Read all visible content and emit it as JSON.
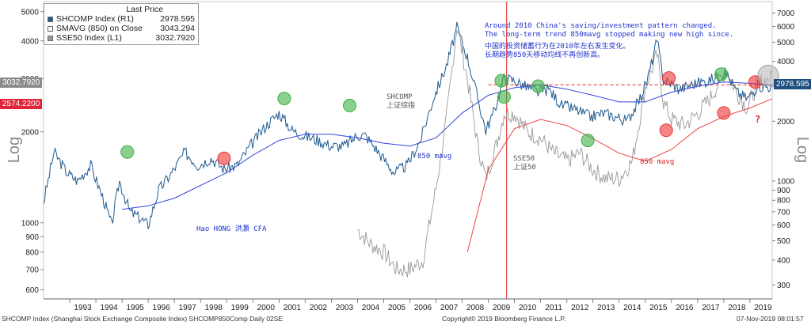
{
  "legend": {
    "header": "Last Price",
    "items": [
      {
        "label": "SHCOMP Index (R1)",
        "value": "2978.595",
        "color": "#1f5a8e"
      },
      {
        "label": "SMAVG (850) on Close",
        "value": "3043.294",
        "color": "#ffffff"
      },
      {
        "label": "SSE50 Index (L1)",
        "value": "3032.7920",
        "color": "#9a9a9a"
      }
    ]
  },
  "annotations": {
    "en": [
      "Around 2010 China's saving/investment pattern changed.",
      "The long-term trend 850mavg stopped making new high since."
    ],
    "cn": [
      "中国的投资储蓄行为在2010年左右发生变化。",
      "长期趋势850天移动均线不再创新高。"
    ],
    "author": "Hao HONG 洪灝 CFA",
    "shcomp_label": [
      "SHCOMP",
      "上证综指"
    ],
    "sse50_label": [
      "SSE50",
      "上证50"
    ],
    "mavg_blue": "850 mavg",
    "mavg_red": "850 mavg",
    "question": "?"
  },
  "tags": {
    "left_gray": "3032.7920",
    "left_red": "2574.2200",
    "right_blue": "2978.595"
  },
  "axis_titles": {
    "left": "Log",
    "right": "Log"
  },
  "footer": {
    "left": "SHCOMP Index (Shanghai Stock Exchange Composite Index) SHCOMP850Comp  Daily 02SE",
    "center": "Copyright© 2019 Bloomberg Finance L.P.",
    "right": "07-Nov-2019 08:01:57"
  },
  "colors": {
    "shcomp": "#1f5a8e",
    "sse50": "#9a9a9a",
    "mavg_blue": "#3344dd",
    "mavg_red": "#ee4444",
    "green_circle": "#3cb043",
    "red_circle": "#ee3333",
    "vline": "#dd2222",
    "hline": "#dd2222"
  },
  "chart_data": {
    "type": "line",
    "x_ticks": [
      "1993",
      "1994",
      "1995",
      "1996",
      "1997",
      "1998",
      "1999",
      "2000",
      "2001",
      "2002",
      "2003",
      "2004",
      "2005",
      "2006",
      "2007",
      "2008",
      "2009",
      "2010",
      "2011",
      "2012",
      "2013",
      "2014",
      "2015",
      "2016",
      "2017",
      "2018",
      "2019"
    ],
    "yaxis_left": {
      "scale": "log",
      "ticks": [
        600,
        700,
        800,
        900,
        1000,
        2000,
        3000,
        4000,
        5000
      ]
    },
    "yaxis_right": {
      "scale": "log",
      "ticks": [
        300,
        400,
        500,
        600,
        700,
        800,
        900,
        1000,
        2000,
        3000,
        4000,
        5000,
        6000,
        7000
      ]
    },
    "series": [
      {
        "name": "SHCOMP Index",
        "axis": "right",
        "x": [
          1992.0,
          1992.4,
          1992.9,
          1993.3,
          1993.8,
          1994.3,
          1994.6,
          1994.9,
          1995.3,
          1995.7,
          1996.0,
          1996.4,
          1996.9,
          1997.4,
          1997.9,
          1998.4,
          1998.9,
          1999.4,
          1999.9,
          2000.5,
          2001.0,
          2001.5,
          2001.9,
          2002.5,
          2003.0,
          2003.5,
          2004.0,
          2004.3,
          2004.8,
          2005.4,
          2005.9,
          2006.4,
          2006.9,
          2007.4,
          2007.8,
          2008.2,
          2008.6,
          2008.9,
          2009.2,
          2009.6,
          2010.0,
          2010.4,
          2010.9,
          2011.3,
          2011.8,
          2012.3,
          2012.9,
          2013.4,
          2013.9,
          2014.3,
          2014.8,
          2015.1,
          2015.45,
          2015.7,
          2016.0,
          2016.3,
          2016.9,
          2017.4,
          2017.9,
          2018.1,
          2018.5,
          2018.9,
          2019.3,
          2019.85
        ],
        "values": [
          780,
          1400,
          1100,
          1000,
          1200,
          800,
          600,
          1000,
          700,
          650,
          600,
          900,
          1100,
          1400,
          1200,
          1300,
          1150,
          1200,
          1500,
          1900,
          2200,
          1800,
          1700,
          1600,
          1500,
          1500,
          1700,
          1700,
          1400,
          1100,
          1200,
          1600,
          2600,
          3800,
          5900,
          4200,
          2600,
          1800,
          2200,
          3300,
          3200,
          3000,
          2800,
          2900,
          2400,
          2300,
          2100,
          2200,
          2100,
          2000,
          2600,
          3300,
          5100,
          3200,
          3100,
          2900,
          3100,
          3200,
          3400,
          3500,
          2800,
          2600,
          3000,
          2980
        ]
      },
      {
        "name": "SSE50 Index",
        "axis": "left",
        "x": [
          2004.0,
          2004.5,
          2005.0,
          2005.5,
          2006.0,
          2006.5,
          2007.0,
          2007.4,
          2007.8,
          2008.2,
          2008.6,
          2008.9,
          2009.3,
          2009.6,
          2010.0,
          2010.5,
          2011.0,
          2011.5,
          2012.0,
          2012.5,
          2013.0,
          2013.5,
          2014.0,
          2014.5,
          2015.0,
          2015.45,
          2015.7,
          2016.0,
          2016.5,
          2017.0,
          2017.5,
          2017.9,
          2018.1,
          2018.5,
          2018.9,
          2019.3,
          2019.85
        ],
        "values": [
          950,
          850,
          800,
          700,
          700,
          750,
          1300,
          2200,
          4500,
          3000,
          1800,
          1400,
          1800,
          2300,
          2300,
          2000,
          1900,
          1700,
          1600,
          1700,
          1500,
          1400,
          1400,
          1600,
          2800,
          3600,
          2500,
          2200,
          2100,
          2300,
          2600,
          3000,
          3200,
          2700,
          2400,
          2900,
          3033
        ]
      },
      {
        "name": "SMAVG (850)",
        "axis": "right",
        "x": [
          1995.0,
          1996.0,
          1997.0,
          1998.0,
          1999.0,
          2000.0,
          2001.0,
          2002.0,
          2003.0,
          2004.0,
          2005.0,
          2006.0,
          2007.0,
          2008.0,
          2009.0,
          2010.0,
          2011.0,
          2012.0,
          2013.0,
          2014.0,
          2015.0,
          2016.0,
          2017.0,
          2018.0,
          2019.0,
          2019.85
        ],
        "values": [
          720,
          750,
          820,
          950,
          1100,
          1350,
          1600,
          1720,
          1720,
          1650,
          1550,
          1500,
          1650,
          2200,
          2700,
          2950,
          3050,
          2900,
          2700,
          2500,
          2500,
          2800,
          3000,
          3150,
          3100,
          3043
        ]
      },
      {
        "name": "SSE50 850 mavg",
        "axis": "left",
        "x": [
          2008.2,
          2009.0,
          2010.0,
          2011.0,
          2012.0,
          2013.0,
          2014.0,
          2015.0,
          2016.0,
          2017.0,
          2018.0,
          2019.0,
          2019.85
        ],
        "values": [
          800,
          1500,
          2050,
          2200,
          2100,
          1900,
          1700,
          1600,
          1750,
          2050,
          2250,
          2400,
          2574
        ]
      }
    ],
    "markers": {
      "green": [
        [
          1995.2,
          1400
        ],
        [
          2001.2,
          2600
        ],
        [
          2003.7,
          2400
        ],
        [
          2009.6,
          2650
        ],
        [
          2012.8,
          1600
        ],
        [
          2009.5,
          3200
        ],
        [
          2010.9,
          3000
        ],
        [
          2017.9,
          3450
        ]
      ],
      "red": [
        [
          1998.9,
          1300
        ],
        [
          2015.8,
          1800
        ],
        [
          2018.0,
          2200
        ],
        [
          2015.9,
          3300
        ],
        [
          2019.2,
          3150
        ]
      ],
      "gray": [
        [
          2019.7,
          3400
        ]
      ]
    }
  }
}
